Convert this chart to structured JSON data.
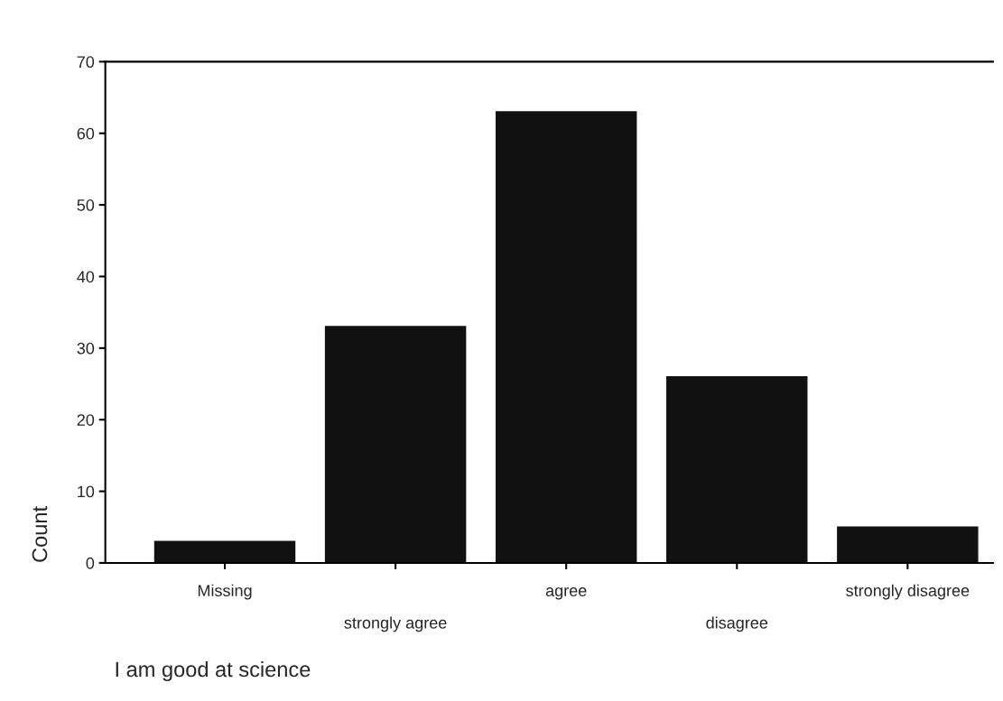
{
  "chart_data": {
    "type": "bar",
    "xlabel": "I am good at science",
    "ylabel": "Count",
    "categories": [
      "Missing",
      "strongly agree",
      "agree",
      "disagree",
      "strongly disagree"
    ],
    "values": [
      3,
      33,
      63,
      26,
      5
    ],
    "color": "#111111",
    "ylim": [
      0,
      70
    ],
    "yticks": [
      0,
      10,
      20,
      30,
      40,
      50,
      60,
      70
    ],
    "grid": false,
    "legend": false
  }
}
